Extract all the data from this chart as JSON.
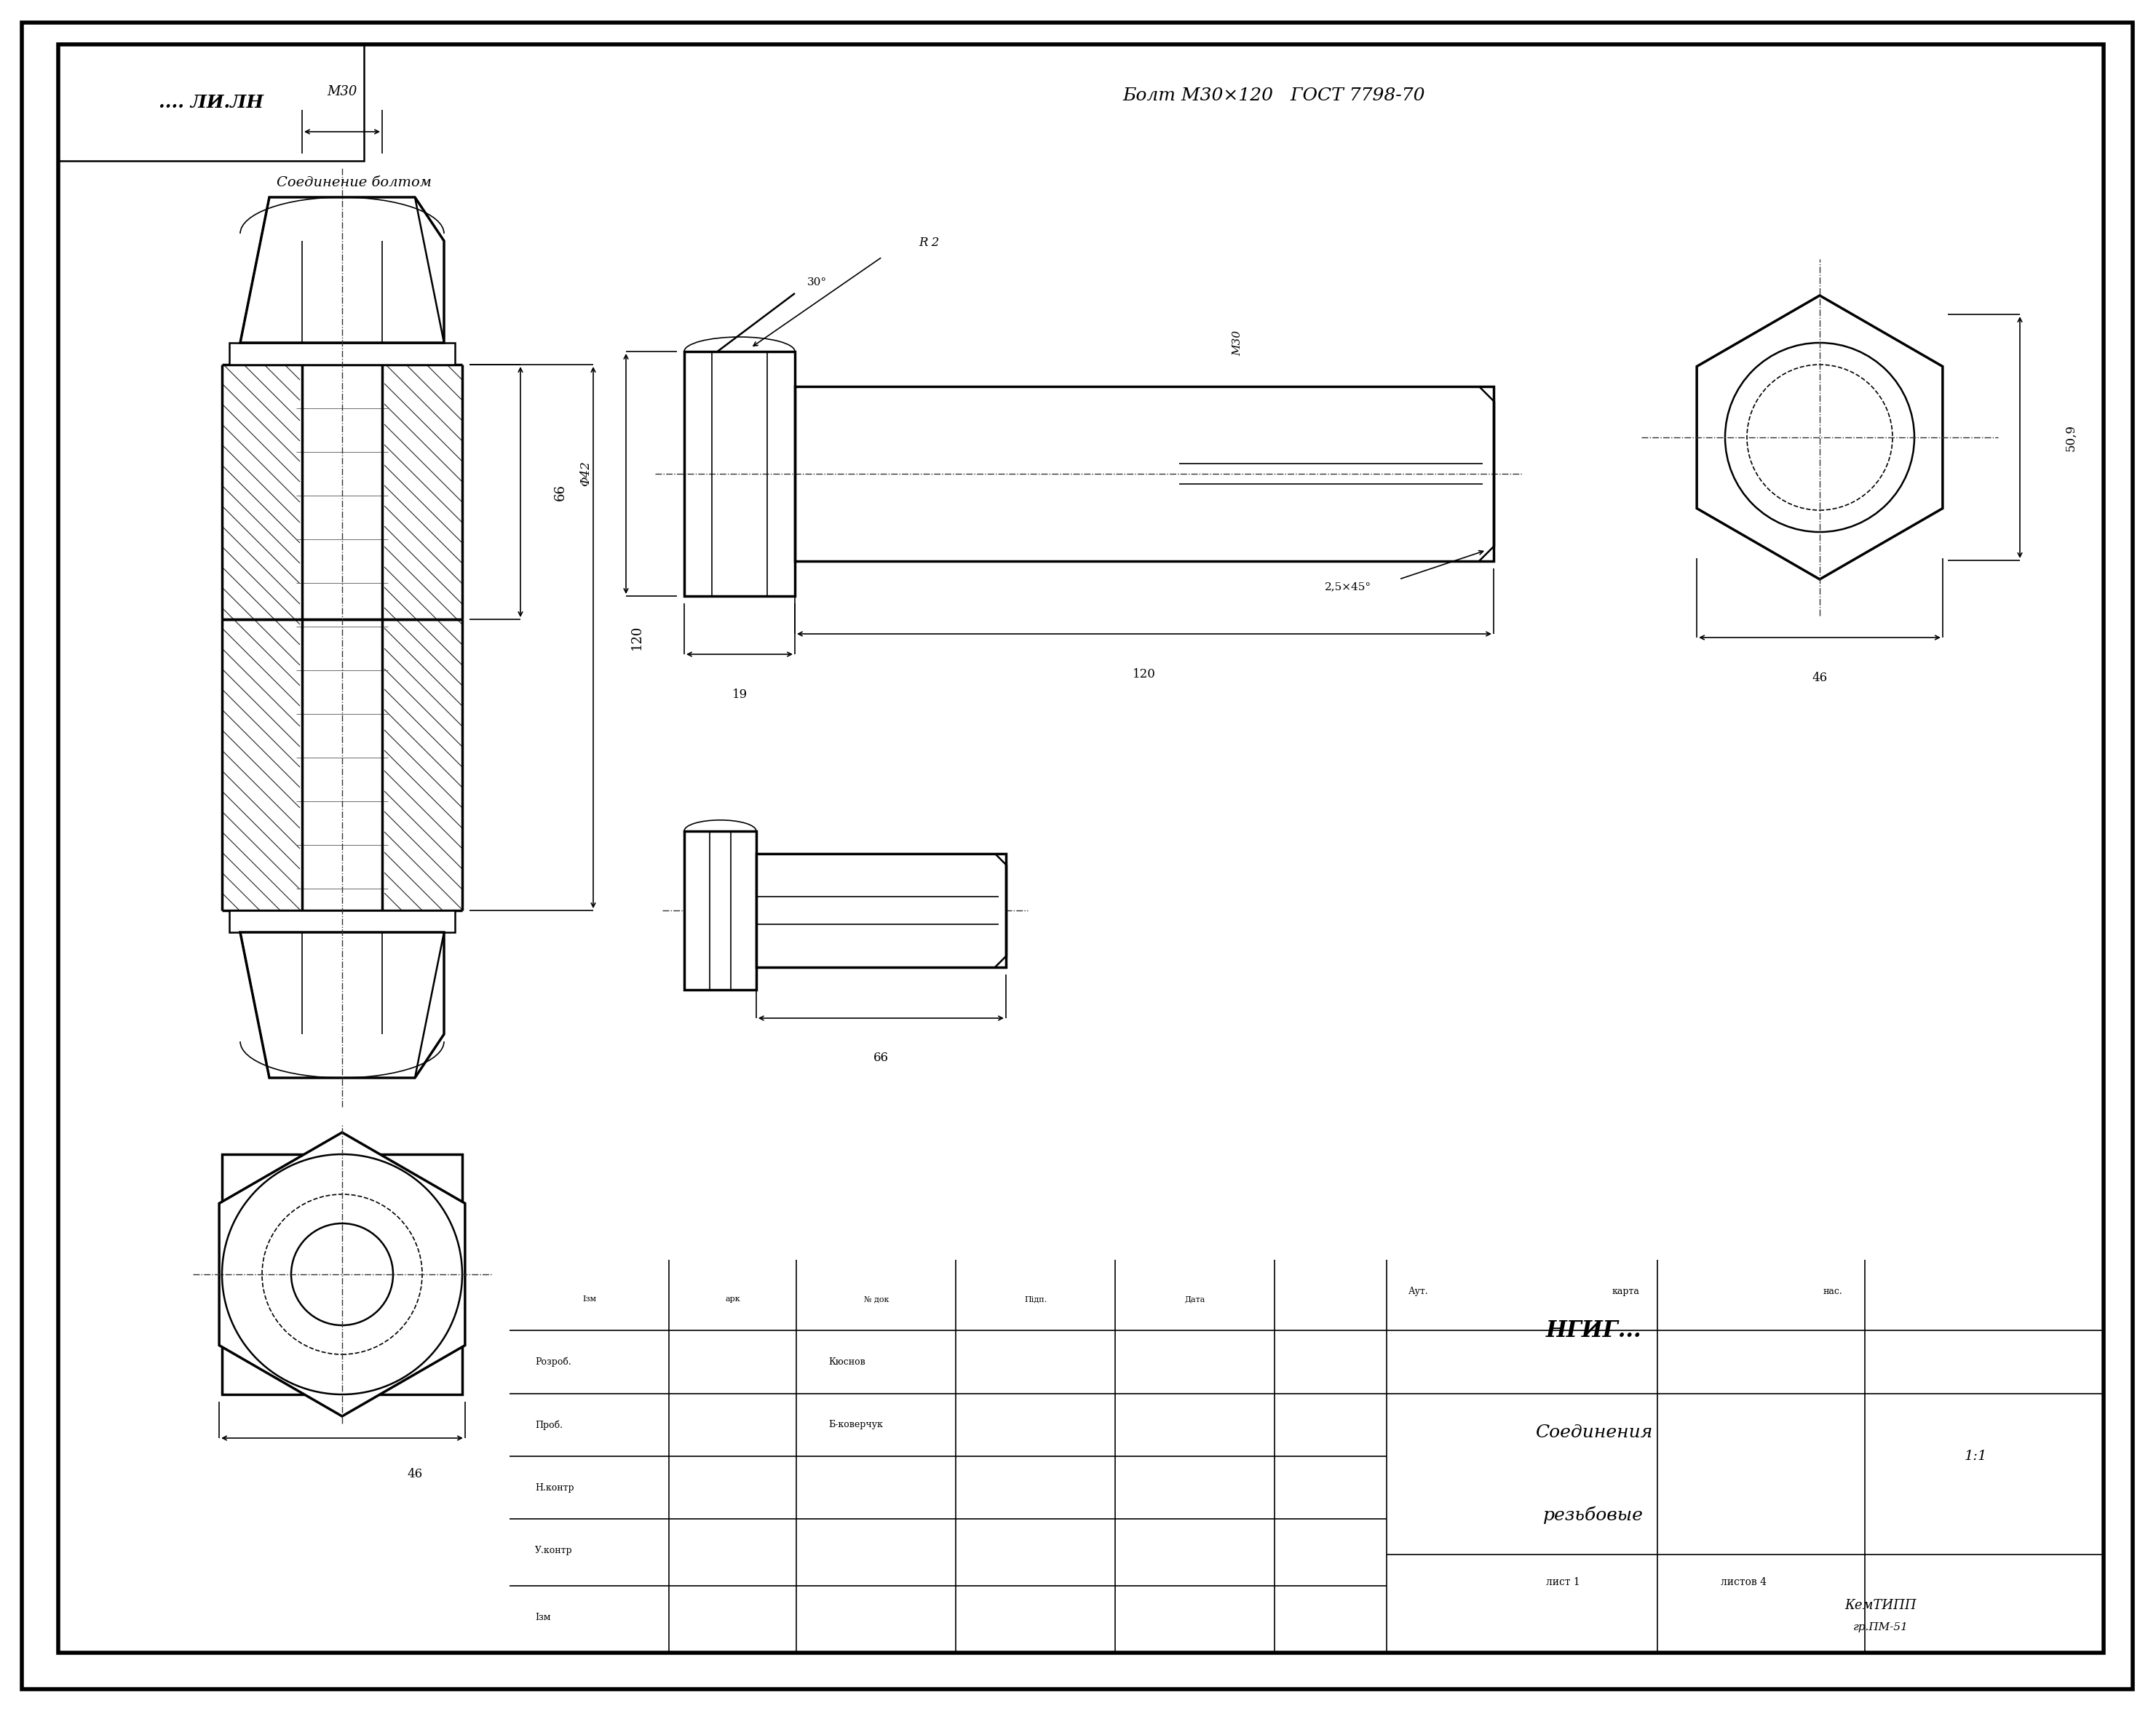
{
  "bg_color": "#ffffff",
  "line_color": "#000000",
  "title_bolt": "Болт М30×120   ГОСТ 7798-70",
  "label_connection": "Соединение болтом",
  "label_m30_top": "М30",
  "label_phi42": "Φ42",
  "label_r2": "R 2",
  "label_30deg": "30°",
  "label_19": "19",
  "label_120": "120",
  "label_25x45": "2,5×45°",
  "label_m30_side": "М30",
  "label_66_right": "66",
  "label_120_left": "120",
  "label_50_9": "50,9",
  "label_46_right": "46",
  "label_66_bottom": "66",
  "label_46_bottom": "46",
  "label_ngig_top": ".... ЛИ.ЛН",
  "label_ngig_block": "НГИГ...",
  "label_soed": "Соединения",
  "label_rez": "резьбовые",
  "label_scale": "1:1",
  "label_list": "лист 1",
  "label_listov": "листов 4",
  "label_kemtipp": "КемТИПП",
  "label_kemcode": "гр.ПМ-51",
  "label_rozr": "Розроб.",
  "label_prob": "Проб.",
  "label_nkontr": "Н.контр",
  "label_ykontr": "У.контр",
  "label_aut": "Аут.",
  "label_razr_name": "Кюснов",
  "label_prob_name": "Б-коверчук",
  "label_izm": "Ізм",
  "label_ark": "арк",
  "label_nom_doc": "№ док",
  "label_pidp": "Підп.",
  "label_data": "Дата"
}
